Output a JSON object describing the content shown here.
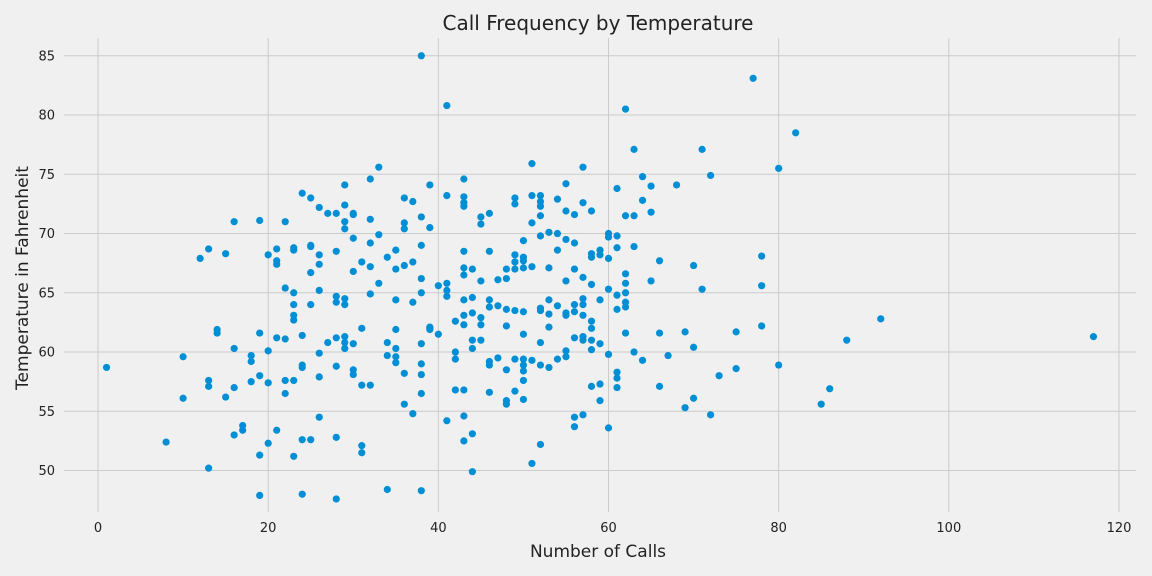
{
  "chart_data": {
    "type": "scatter",
    "title": "Call Frequency by Temperature",
    "xlabel": "Number of Calls",
    "ylabel": "Temperature in Fahrenheit",
    "xlim": [
      -4,
      122
    ],
    "ylim": [
      46.5,
      86.5
    ],
    "xticks": [
      0,
      20,
      40,
      60,
      80,
      100,
      120
    ],
    "yticks": [
      50,
      55,
      60,
      65,
      70,
      75,
      80,
      85
    ],
    "grid": true,
    "legend": "none",
    "colors": {
      "point": "#008fd5",
      "grid": "#cbcbcb",
      "background": "#f0f0f0"
    },
    "points": [
      [
        1,
        58.7
      ],
      [
        8,
        52.4
      ],
      [
        10,
        59.6
      ],
      [
        10,
        56.1
      ],
      [
        12,
        67.9
      ],
      [
        13,
        68.7
      ],
      [
        13,
        57.6
      ],
      [
        13,
        57.1
      ],
      [
        13,
        50.2
      ],
      [
        14,
        61.9
      ],
      [
        14,
        61.6
      ],
      [
        15,
        68.3
      ],
      [
        15,
        56.2
      ],
      [
        16,
        71
      ],
      [
        16,
        60.3
      ],
      [
        16,
        57
      ],
      [
        16,
        53
      ],
      [
        17,
        53.8
      ],
      [
        17,
        53.4
      ],
      [
        18,
        59.7
      ],
      [
        18,
        59.2
      ],
      [
        18,
        57.5
      ],
      [
        19,
        71.1
      ],
      [
        19,
        61.6
      ],
      [
        19,
        58
      ],
      [
        19,
        51.3
      ],
      [
        19,
        47.9
      ],
      [
        20,
        68.2
      ],
      [
        20,
        60.1
      ],
      [
        20,
        57.4
      ],
      [
        20,
        52.3
      ],
      [
        21,
        68.7
      ],
      [
        21,
        67.7
      ],
      [
        21,
        67.4
      ],
      [
        21,
        61.2
      ],
      [
        21,
        53.4
      ],
      [
        22,
        71
      ],
      [
        22,
        65.4
      ],
      [
        22,
        61.1
      ],
      [
        22,
        57.6
      ],
      [
        22,
        56.5
      ],
      [
        23,
        68.8
      ],
      [
        23,
        68.6
      ],
      [
        23,
        65
      ],
      [
        23,
        64
      ],
      [
        23,
        63.1
      ],
      [
        23,
        62.7
      ],
      [
        23,
        57.6
      ],
      [
        23,
        51.2
      ],
      [
        24,
        73.4
      ],
      [
        24,
        61.4
      ],
      [
        24,
        58.9
      ],
      [
        24,
        58.7
      ],
      [
        24,
        52.6
      ],
      [
        24,
        48
      ],
      [
        25,
        73
      ],
      [
        25,
        69
      ],
      [
        25,
        68.9
      ],
      [
        25,
        66.7
      ],
      [
        25,
        64
      ],
      [
        25,
        52.6
      ],
      [
        26,
        72.2
      ],
      [
        26,
        68.2
      ],
      [
        26,
        67.4
      ],
      [
        26,
        65.2
      ],
      [
        26,
        59.9
      ],
      [
        26,
        57.9
      ],
      [
        26,
        54.5
      ],
      [
        27,
        71.7
      ],
      [
        27,
        60.8
      ],
      [
        28,
        71.7
      ],
      [
        28,
        68.5
      ],
      [
        28,
        64.7
      ],
      [
        28,
        64.2
      ],
      [
        28,
        61.2
      ],
      [
        28,
        58.8
      ],
      [
        28,
        52.8
      ],
      [
        28,
        47.6
      ],
      [
        29,
        74.1
      ],
      [
        29,
        72.4
      ],
      [
        29,
        71
      ],
      [
        29,
        70.4
      ],
      [
        29,
        64.5
      ],
      [
        29,
        64
      ],
      [
        29,
        61.3
      ],
      [
        29,
        60.8
      ],
      [
        29,
        60.3
      ],
      [
        30,
        71.7
      ],
      [
        30,
        71.6
      ],
      [
        30,
        69.6
      ],
      [
        30,
        66.8
      ],
      [
        30,
        60.7
      ],
      [
        30,
        58.5
      ],
      [
        30,
        58.1
      ],
      [
        31,
        67.6
      ],
      [
        31,
        62
      ],
      [
        31,
        57.2
      ],
      [
        31,
        52.1
      ],
      [
        31,
        51.5
      ],
      [
        32,
        74.6
      ],
      [
        32,
        71.2
      ],
      [
        32,
        69.2
      ],
      [
        32,
        67.2
      ],
      [
        32,
        64.9
      ],
      [
        32,
        57.2
      ],
      [
        33,
        75.6
      ],
      [
        33,
        69.9
      ],
      [
        33,
        65.8
      ],
      [
        34,
        68
      ],
      [
        34,
        60.8
      ],
      [
        34,
        59.7
      ],
      [
        34,
        48.4
      ],
      [
        35,
        68.6
      ],
      [
        35,
        67
      ],
      [
        35,
        64.4
      ],
      [
        35,
        61.9
      ],
      [
        35,
        60.3
      ],
      [
        35,
        59.6
      ],
      [
        35,
        59.1
      ],
      [
        36,
        73
      ],
      [
        36,
        70.9
      ],
      [
        36,
        70.4
      ],
      [
        36,
        67.3
      ],
      [
        36,
        58.2
      ],
      [
        36,
        55.6
      ],
      [
        37,
        72.7
      ],
      [
        37,
        67.6
      ],
      [
        37,
        64.2
      ],
      [
        37,
        54.8
      ],
      [
        38,
        85
      ],
      [
        38,
        71.4
      ],
      [
        38,
        69
      ],
      [
        38,
        66.2
      ],
      [
        38,
        65
      ],
      [
        38,
        60.7
      ],
      [
        38,
        59
      ],
      [
        38,
        58.1
      ],
      [
        38,
        56.5
      ],
      [
        38,
        48.3
      ],
      [
        39,
        74.1
      ],
      [
        39,
        70.5
      ],
      [
        39,
        62.1
      ],
      [
        39,
        62
      ],
      [
        39,
        61.9
      ],
      [
        40,
        65.6
      ],
      [
        40,
        61.5
      ],
      [
        41,
        80.8
      ],
      [
        41,
        73.2
      ],
      [
        41,
        65.8
      ],
      [
        41,
        65.2
      ],
      [
        41,
        64.7
      ],
      [
        41,
        54.2
      ],
      [
        42,
        62.6
      ],
      [
        42,
        60
      ],
      [
        42,
        59.4
      ],
      [
        42,
        56.8
      ],
      [
        43,
        74.6
      ],
      [
        43,
        73.1
      ],
      [
        43,
        72.6
      ],
      [
        43,
        72.3
      ],
      [
        43,
        68.5
      ],
      [
        43,
        67.1
      ],
      [
        43,
        66.5
      ],
      [
        43,
        64.4
      ],
      [
        43,
        63.1
      ],
      [
        43,
        62.3
      ],
      [
        43,
        56.8
      ],
      [
        43,
        54.6
      ],
      [
        43,
        52.5
      ],
      [
        44,
        67
      ],
      [
        44,
        64.6
      ],
      [
        44,
        63.3
      ],
      [
        44,
        61
      ],
      [
        44,
        60.3
      ],
      [
        44,
        53.1
      ],
      [
        44,
        49.9
      ],
      [
        45,
        71.4
      ],
      [
        45,
        70.8
      ],
      [
        45,
        66
      ],
      [
        45,
        62.9
      ],
      [
        45,
        62.3
      ],
      [
        45,
        61
      ],
      [
        46,
        71.7
      ],
      [
        46,
        68.5
      ],
      [
        46,
        64.4
      ],
      [
        46,
        63.8
      ],
      [
        46,
        59.2
      ],
      [
        46,
        58.9
      ],
      [
        46,
        56.6
      ],
      [
        47,
        66.1
      ],
      [
        47,
        63.9
      ],
      [
        47,
        59.5
      ],
      [
        48,
        67
      ],
      [
        48,
        66.2
      ],
      [
        48,
        63.6
      ],
      [
        48,
        62.2
      ],
      [
        48,
        58.5
      ],
      [
        48,
        55.9
      ],
      [
        48,
        55.6
      ],
      [
        49,
        73
      ],
      [
        49,
        72.5
      ],
      [
        49,
        68.2
      ],
      [
        49,
        67.6
      ],
      [
        49,
        67
      ],
      [
        49,
        63.5
      ],
      [
        49,
        59.4
      ],
      [
        49,
        56.7
      ],
      [
        50,
        69.4
      ],
      [
        50,
        68
      ],
      [
        50,
        67.7
      ],
      [
        50,
        67.1
      ],
      [
        50,
        63.4
      ],
      [
        50,
        61.5
      ],
      [
        50,
        59.4
      ],
      [
        50,
        58.9
      ],
      [
        50,
        58.4
      ],
      [
        50,
        57.6
      ],
      [
        50,
        56
      ],
      [
        51,
        75.9
      ],
      [
        51,
        73.2
      ],
      [
        51,
        70.9
      ],
      [
        51,
        67.2
      ],
      [
        51,
        59.3
      ],
      [
        51,
        50.6
      ],
      [
        52,
        73.2
      ],
      [
        52,
        72.7
      ],
      [
        52,
        72.3
      ],
      [
        52,
        71.5
      ],
      [
        52,
        69.8
      ],
      [
        52,
        63.7
      ],
      [
        52,
        63.5
      ],
      [
        52,
        60.8
      ],
      [
        52,
        58.9
      ],
      [
        52,
        52.2
      ],
      [
        53,
        70.1
      ],
      [
        53,
        67.1
      ],
      [
        53,
        64.4
      ],
      [
        53,
        63.2
      ],
      [
        53,
        62.1
      ],
      [
        53,
        58.7
      ],
      [
        54,
        72.9
      ],
      [
        54,
        70
      ],
      [
        54,
        68.6
      ],
      [
        54,
        63.9
      ],
      [
        54,
        59.4
      ],
      [
        55,
        74.2
      ],
      [
        55,
        71.9
      ],
      [
        55,
        69.5
      ],
      [
        55,
        66
      ],
      [
        55,
        63.3
      ],
      [
        55,
        63.1
      ],
      [
        55,
        60.1
      ],
      [
        55,
        59.6
      ],
      [
        56,
        71.6
      ],
      [
        56,
        69.2
      ],
      [
        56,
        67
      ],
      [
        56,
        64
      ],
      [
        56,
        63.4
      ],
      [
        56,
        61.2
      ],
      [
        56,
        54.5
      ],
      [
        56,
        53.7
      ],
      [
        57,
        75.6
      ],
      [
        57,
        72.6
      ],
      [
        57,
        66.3
      ],
      [
        57,
        64.5
      ],
      [
        57,
        64
      ],
      [
        57,
        63.1
      ],
      [
        57,
        61.3
      ],
      [
        57,
        61
      ],
      [
        57,
        54.7
      ],
      [
        58,
        71.9
      ],
      [
        58,
        68.3
      ],
      [
        58,
        68
      ],
      [
        58,
        65.7
      ],
      [
        58,
        62.6
      ],
      [
        58,
        62
      ],
      [
        58,
        61
      ],
      [
        58,
        60.2
      ],
      [
        58,
        57.1
      ],
      [
        59,
        68.6
      ],
      [
        59,
        68.2
      ],
      [
        59,
        64.4
      ],
      [
        59,
        60.7
      ],
      [
        59,
        57.3
      ],
      [
        59,
        55.9
      ],
      [
        60,
        70
      ],
      [
        60,
        69.7
      ],
      [
        60,
        67.9
      ],
      [
        60,
        65.3
      ],
      [
        60,
        59.8
      ],
      [
        60,
        53.6
      ],
      [
        61,
        73.8
      ],
      [
        61,
        69.8
      ],
      [
        61,
        68.8
      ],
      [
        61,
        64.8
      ],
      [
        61,
        63.6
      ],
      [
        61,
        58.3
      ],
      [
        61,
        57.8
      ],
      [
        61,
        57
      ],
      [
        62,
        80.5
      ],
      [
        62,
        71.5
      ],
      [
        62,
        66.6
      ],
      [
        62,
        65.8
      ],
      [
        62,
        65
      ],
      [
        62,
        64.2
      ],
      [
        62,
        63.8
      ],
      [
        62,
        61.6
      ],
      [
        63,
        77.1
      ],
      [
        63,
        71.5
      ],
      [
        63,
        68.9
      ],
      [
        63,
        60
      ],
      [
        64,
        74.8
      ],
      [
        64,
        72.8
      ],
      [
        64,
        59.3
      ],
      [
        65,
        74
      ],
      [
        65,
        71.8
      ],
      [
        65,
        66
      ],
      [
        66,
        67.7
      ],
      [
        66,
        61.6
      ],
      [
        66,
        57.1
      ],
      [
        67,
        59.7
      ],
      [
        68,
        74.1
      ],
      [
        69,
        61.7
      ],
      [
        69,
        55.3
      ],
      [
        70,
        67.3
      ],
      [
        70,
        60.4
      ],
      [
        70,
        56.1
      ],
      [
        71,
        77.1
      ],
      [
        71,
        65.3
      ],
      [
        72,
        74.9
      ],
      [
        72,
        54.7
      ],
      [
        73,
        58
      ],
      [
        75,
        61.7
      ],
      [
        75,
        58.6
      ],
      [
        77,
        83.1
      ],
      [
        78,
        68.1
      ],
      [
        78,
        65.6
      ],
      [
        78,
        62.2
      ],
      [
        80,
        75.5
      ],
      [
        80,
        58.9
      ],
      [
        82,
        78.5
      ],
      [
        85,
        55.6
      ],
      [
        86,
        56.9
      ],
      [
        88,
        61
      ],
      [
        92,
        62.8
      ],
      [
        117,
        61.3
      ]
    ]
  }
}
